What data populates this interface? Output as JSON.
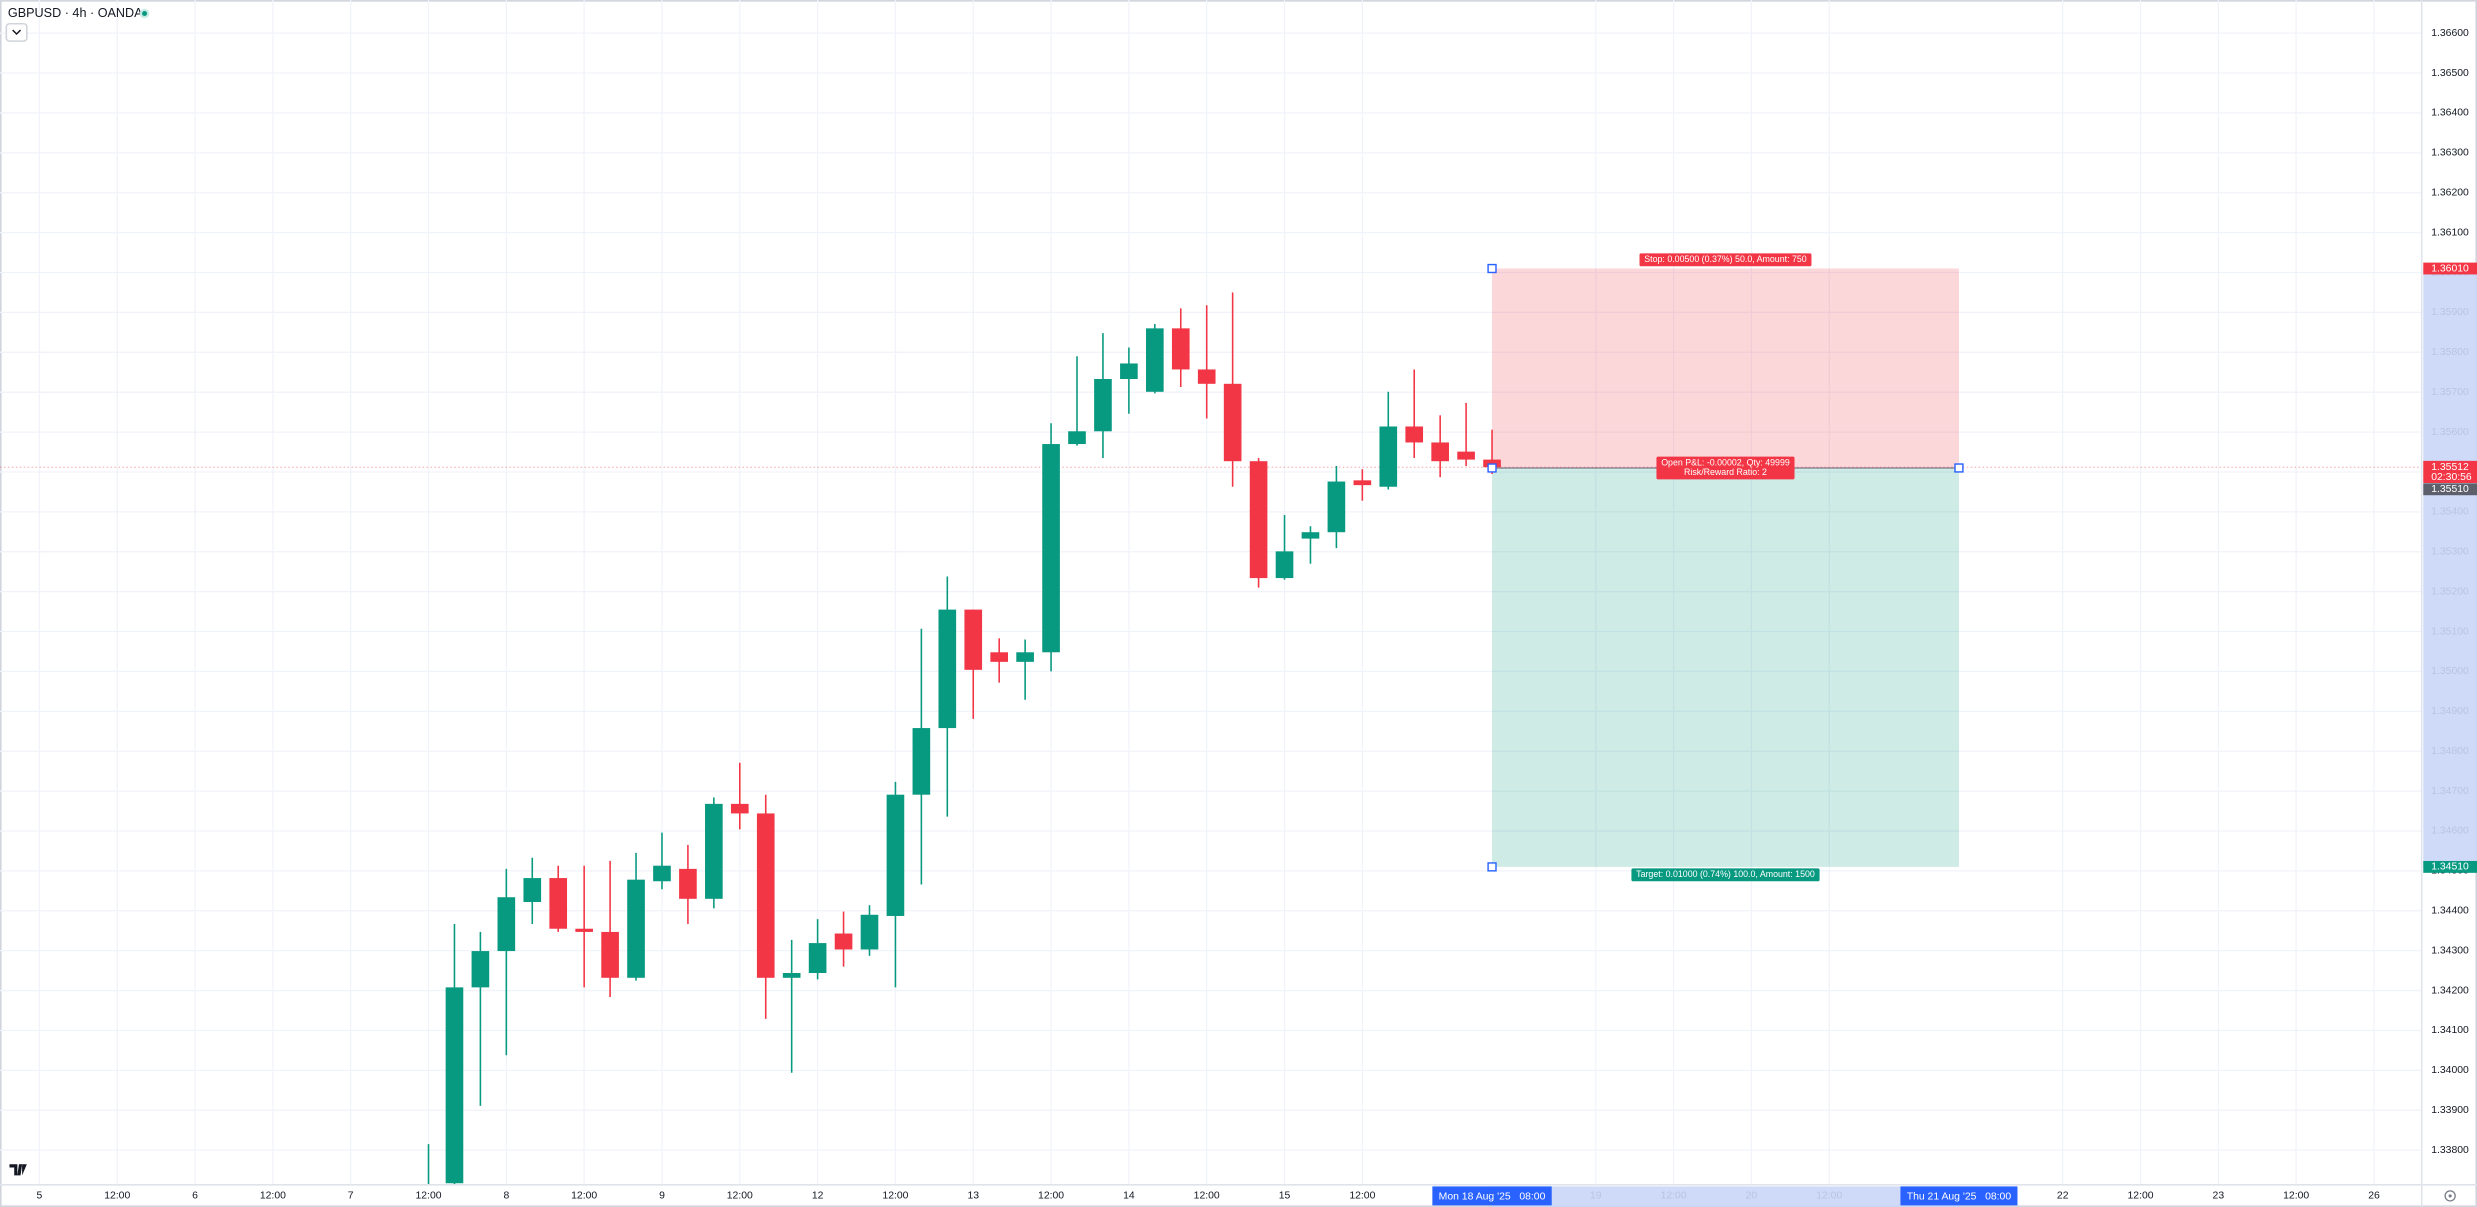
{
  "chart_data": {
    "type": "candlestick",
    "title": "GBPUSD · 4h · OANDA",
    "x": [
      15,
      16,
      17,
      18,
      19,
      20,
      21,
      22,
      23,
      24,
      25,
      26,
      27,
      28,
      29,
      30,
      31,
      32,
      33,
      34,
      35,
      36,
      37,
      38,
      39,
      40,
      41,
      42,
      43,
      44,
      45,
      46,
      47,
      48,
      49,
      50,
      51,
      52,
      53,
      54,
      55,
      56
    ],
    "open": [
      1.3365,
      1.33717,
      1.34208,
      1.34299,
      1.34422,
      1.34482,
      1.34355,
      1.34347,
      1.34232,
      1.34474,
      1.34505,
      1.3443,
      1.34668,
      1.34644,
      1.34232,
      1.34244,
      1.34343,
      1.34303,
      1.34387,
      1.34691,
      1.34858,
      1.35155,
      1.35048,
      1.35024,
      1.35048,
      1.3557,
      1.35602,
      1.35733,
      1.35701,
      1.3586,
      1.35757,
      1.35721,
      1.35527,
      1.35234,
      1.35333,
      1.35349,
      1.35479,
      1.35463,
      1.35614,
      1.35574,
      1.35551,
      1.35531
    ],
    "high": [
      1.33815,
      1.34367,
      1.34347,
      1.34505,
      1.34533,
      1.34513,
      1.34513,
      1.34525,
      1.34545,
      1.34596,
      1.34565,
      1.34684,
      1.34771,
      1.34691,
      1.34327,
      1.34379,
      1.34398,
      1.34414,
      1.34723,
      1.35107,
      1.35238,
      1.35155,
      1.35083,
      1.3508,
      1.35622,
      1.3579,
      1.35848,
      1.35812,
      1.35871,
      1.3591,
      1.35918,
      1.3595,
      1.35535,
      1.35392,
      1.35364,
      1.35515,
      1.35507,
      1.35701,
      1.35757,
      1.35642,
      1.35673,
      1.35606
    ],
    "low": [
      1.3362,
      1.3371,
      1.33911,
      1.34038,
      1.34367,
      1.34347,
      1.34208,
      1.34184,
      1.34225,
      1.34454,
      1.34367,
      1.34406,
      1.34604,
      1.34129,
      1.33994,
      1.34228,
      1.3426,
      1.34287,
      1.34208,
      1.34466,
      1.34636,
      1.34881,
      1.34972,
      1.34929,
      1.35,
      1.35566,
      1.35535,
      1.35646,
      1.35697,
      1.35713,
      1.35634,
      1.35463,
      1.3521,
      1.3523,
      1.3527,
      1.35309,
      1.35428,
      1.35456,
      1.35535,
      1.35487,
      1.35515,
      1.35495
    ],
    "close": [
      1.337,
      1.34208,
      1.34299,
      1.34434,
      1.34482,
      1.34355,
      1.34347,
      1.34232,
      1.34478,
      1.34513,
      1.3443,
      1.34668,
      1.34644,
      1.34232,
      1.34244,
      1.34319,
      1.34303,
      1.3439,
      1.34691,
      1.34858,
      1.35155,
      1.35004,
      1.35024,
      1.35048,
      1.3557,
      1.35602,
      1.35733,
      1.35772,
      1.3586,
      1.35757,
      1.35721,
      1.35527,
      1.35234,
      1.35301,
      1.35349,
      1.35476,
      1.35467,
      1.35614,
      1.35574,
      1.35527,
      1.35531,
      1.35512
    ],
    "up_color": "#089981",
    "down_color": "#f23645",
    "xlim": [
      -1.52,
      91.84
    ],
    "xticks": [
      {
        "value": 0,
        "label": "5"
      },
      {
        "value": 3,
        "label": "12:00"
      },
      {
        "value": 6,
        "label": "6"
      },
      {
        "value": 9,
        "label": "12:00"
      },
      {
        "value": 12,
        "label": "7"
      },
      {
        "value": 15,
        "label": "12:00"
      },
      {
        "value": 18,
        "label": "8"
      },
      {
        "value": 21,
        "label": "12:00"
      },
      {
        "value": 24,
        "label": "9"
      },
      {
        "value": 27,
        "label": "12:00"
      },
      {
        "value": 30,
        "label": "12"
      },
      {
        "value": 33,
        "label": "12:00"
      },
      {
        "value": 36,
        "label": "13"
      },
      {
        "value": 39,
        "label": "12:00"
      },
      {
        "value": 42,
        "label": "14"
      },
      {
        "value": 45,
        "label": "12:00"
      },
      {
        "value": 48,
        "label": "15"
      },
      {
        "value": 51,
        "label": "12:00"
      },
      {
        "value": 60,
        "label": "19"
      },
      {
        "value": 63,
        "label": "12:00"
      },
      {
        "value": 66,
        "label": "20"
      },
      {
        "value": 69,
        "label": "12:00"
      },
      {
        "value": 78,
        "label": "22"
      },
      {
        "value": 81,
        "label": "12:00"
      },
      {
        "value": 84,
        "label": "23"
      },
      {
        "value": 87,
        "label": "12:00"
      },
      {
        "value": 90,
        "label": "26"
      }
    ],
    "ylim": [
      1.33713,
      1.36683
    ],
    "yticks": [
      {
        "value": 1.338,
        "label": "1.33800"
      },
      {
        "value": 1.339,
        "label": "1.33900"
      },
      {
        "value": 1.34,
        "label": "1.34000"
      },
      {
        "value": 1.341,
        "label": "1.34100"
      },
      {
        "value": 1.342,
        "label": "1.34200"
      },
      {
        "value": 1.343,
        "label": "1.34300"
      },
      {
        "value": 1.344,
        "label": "1.34400"
      },
      {
        "value": 1.345,
        "label": "1.34500"
      },
      {
        "value": 1.346,
        "label": "1.34600"
      },
      {
        "value": 1.347,
        "label": "1.34700"
      },
      {
        "value": 1.348,
        "label": "1.34800"
      },
      {
        "value": 1.349,
        "label": "1.34900"
      },
      {
        "value": 1.35,
        "label": "1.35000"
      },
      {
        "value": 1.351,
        "label": "1.35100"
      },
      {
        "value": 1.352,
        "label": "1.35200"
      },
      {
        "value": 1.353,
        "label": "1.35300"
      },
      {
        "value": 1.354,
        "label": "1.35400"
      },
      {
        "value": 1.355,
        "label": "1.35500"
      },
      {
        "value": 1.356,
        "label": "1.35600"
      },
      {
        "value": 1.357,
        "label": "1.35700"
      },
      {
        "value": 1.358,
        "label": "1.35800"
      },
      {
        "value": 1.359,
        "label": "1.35900"
      },
      {
        "value": 1.36,
        "label": "1.36000"
      },
      {
        "value": 1.361,
        "label": "1.36100"
      },
      {
        "value": 1.362,
        "label": "1.36200"
      },
      {
        "value": 1.363,
        "label": "1.36300"
      },
      {
        "value": 1.364,
        "label": "1.36400"
      },
      {
        "value": 1.365,
        "label": "1.36500"
      },
      {
        "value": 1.366,
        "label": "1.36600"
      }
    ],
    "grid": true,
    "last_price": 1.35512,
    "countdown": "02:30:56",
    "position": {
      "entry": {
        "value": 1.3551,
        "label": "1.35510"
      },
      "stop": {
        "value": 1.3601,
        "label": "1.36010"
      },
      "target": {
        "value": 1.3451,
        "label": "1.34510"
      },
      "start": {
        "value": 56,
        "label": "Mon 18 Aug '25   08:00"
      },
      "end": {
        "value": 74,
        "label": "Thu 21 Aug '25   08:00"
      },
      "stop_text": "Stop: 0.00500 (0.37%) 50.0, Amount: 750",
      "pnl_text": "Open P&L: -0.00002, Qty: 49999",
      "ratio_text": "Risk/Reward Ratio: 2",
      "target_text": "Target: 0.01000 (0.74%) 100.0, Amount: 1500",
      "stop_color": "#f23645",
      "target_color": "#089981"
    }
  }
}
